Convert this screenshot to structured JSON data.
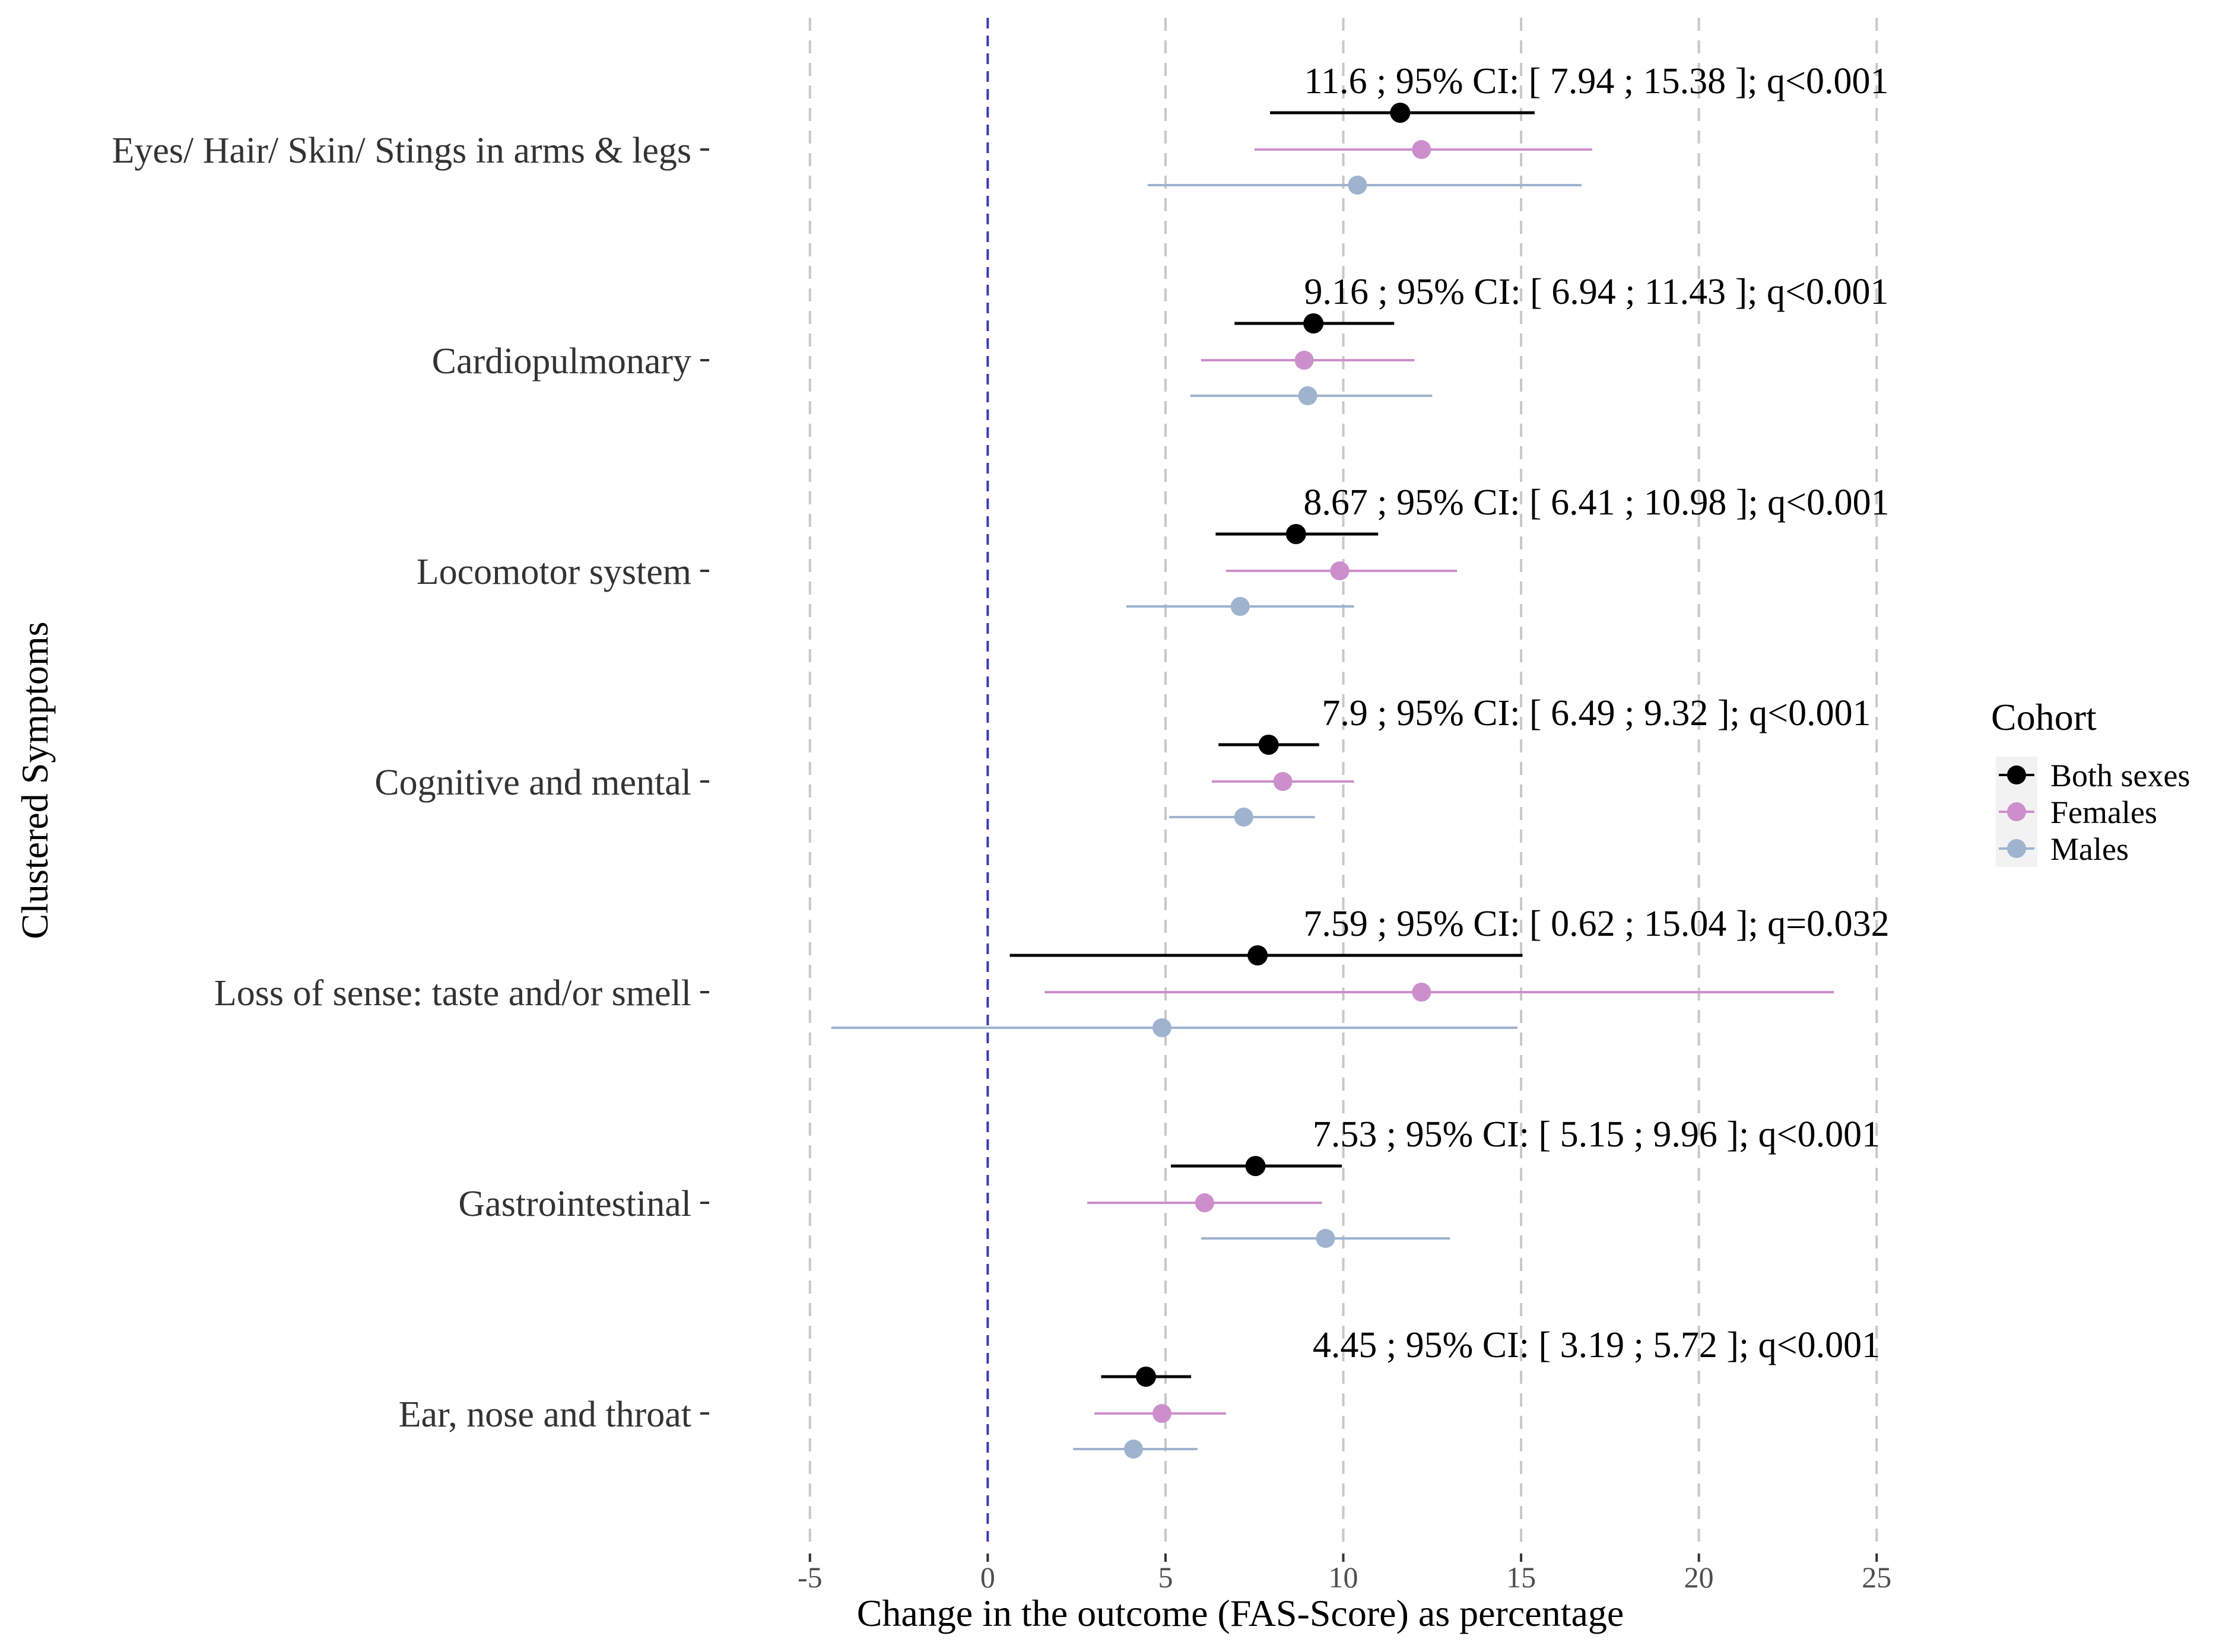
{
  "chart_data": {
    "type": "forest",
    "xlabel": "Change in the outcome (FAS-Score) as percentage",
    "ylabel": "Clustered Symptoms",
    "xlim": [
      -7.5,
      27.8
    ],
    "x_ticks": [
      -5,
      0,
      5,
      10,
      15,
      20,
      25
    ],
    "reference_line": 0,
    "legend": {
      "title": "Cohort",
      "position": "right",
      "entries": [
        {
          "name": "Both sexes",
          "color": "#000000"
        },
        {
          "name": "Females",
          "color": "#cc8fcc"
        },
        {
          "name": "Males",
          "color": "#9fb3cf"
        }
      ]
    },
    "categories": [
      {
        "label": "Eyes/ Hair/ Skin/ Stings in arms & legs",
        "annotation": "11.6 ; 95% CI: [ 7.94 ;  15.38 ];  q<0.001",
        "both": {
          "est": 11.6,
          "lo": 7.94,
          "hi": 15.38
        },
        "females": {
          "est": 12.2,
          "lo": 7.5,
          "hi": 17.0
        },
        "males": {
          "est": 10.4,
          "lo": 4.5,
          "hi": 16.7
        }
      },
      {
        "label": "Cardiopulmonary",
        "annotation": "9.16 ; 95% CI: [ 6.94 ;  11.43 ];  q<0.001",
        "both": {
          "est": 9.16,
          "lo": 6.94,
          "hi": 11.43
        },
        "females": {
          "est": 8.9,
          "lo": 6.0,
          "hi": 12.0
        },
        "males": {
          "est": 9.0,
          "lo": 5.7,
          "hi": 12.5
        }
      },
      {
        "label": "Locomotor system",
        "annotation": "8.67 ; 95% CI: [ 6.41 ;  10.98 ];  q<0.001",
        "both": {
          "est": 8.67,
          "lo": 6.41,
          "hi": 10.98
        },
        "females": {
          "est": 9.9,
          "lo": 6.7,
          "hi": 13.2
        },
        "males": {
          "est": 7.1,
          "lo": 3.9,
          "hi": 10.3
        }
      },
      {
        "label": "Cognitive and mental",
        "annotation": "7.9 ; 95% CI: [ 6.49 ;  9.32 ];  q<0.001",
        "both": {
          "est": 7.9,
          "lo": 6.49,
          "hi": 9.32
        },
        "females": {
          "est": 8.3,
          "lo": 6.3,
          "hi": 10.3
        },
        "males": {
          "est": 7.2,
          "lo": 5.1,
          "hi": 9.2
        }
      },
      {
        "label": "Loss of sense: taste and/or smell",
        "annotation": "7.59 ; 95% CI: [ 0.62 ;  15.04 ];  q=0.032",
        "both": {
          "est": 7.59,
          "lo": 0.62,
          "hi": 15.04
        },
        "females": {
          "est": 12.2,
          "lo": 1.6,
          "hi": 23.8
        },
        "males": {
          "est": 4.9,
          "lo": -4.4,
          "hi": 14.9
        }
      },
      {
        "label": "Gastrointestinal",
        "annotation": "7.53 ; 95% CI: [ 5.15 ;  9.96 ];  q<0.001",
        "both": {
          "est": 7.53,
          "lo": 5.15,
          "hi": 9.96
        },
        "females": {
          "est": 6.1,
          "lo": 2.8,
          "hi": 9.4
        },
        "males": {
          "est": 9.5,
          "lo": 6.0,
          "hi": 13.0
        }
      },
      {
        "label": "Ear, nose and throat",
        "annotation": "4.45 ; 95% CI: [ 3.19 ;  5.72 ];  q<0.001",
        "both": {
          "est": 4.45,
          "lo": 3.19,
          "hi": 5.72
        },
        "females": {
          "est": 4.9,
          "lo": 3.0,
          "hi": 6.7
        },
        "males": {
          "est": 4.1,
          "lo": 2.4,
          "hi": 5.9
        }
      }
    ]
  }
}
